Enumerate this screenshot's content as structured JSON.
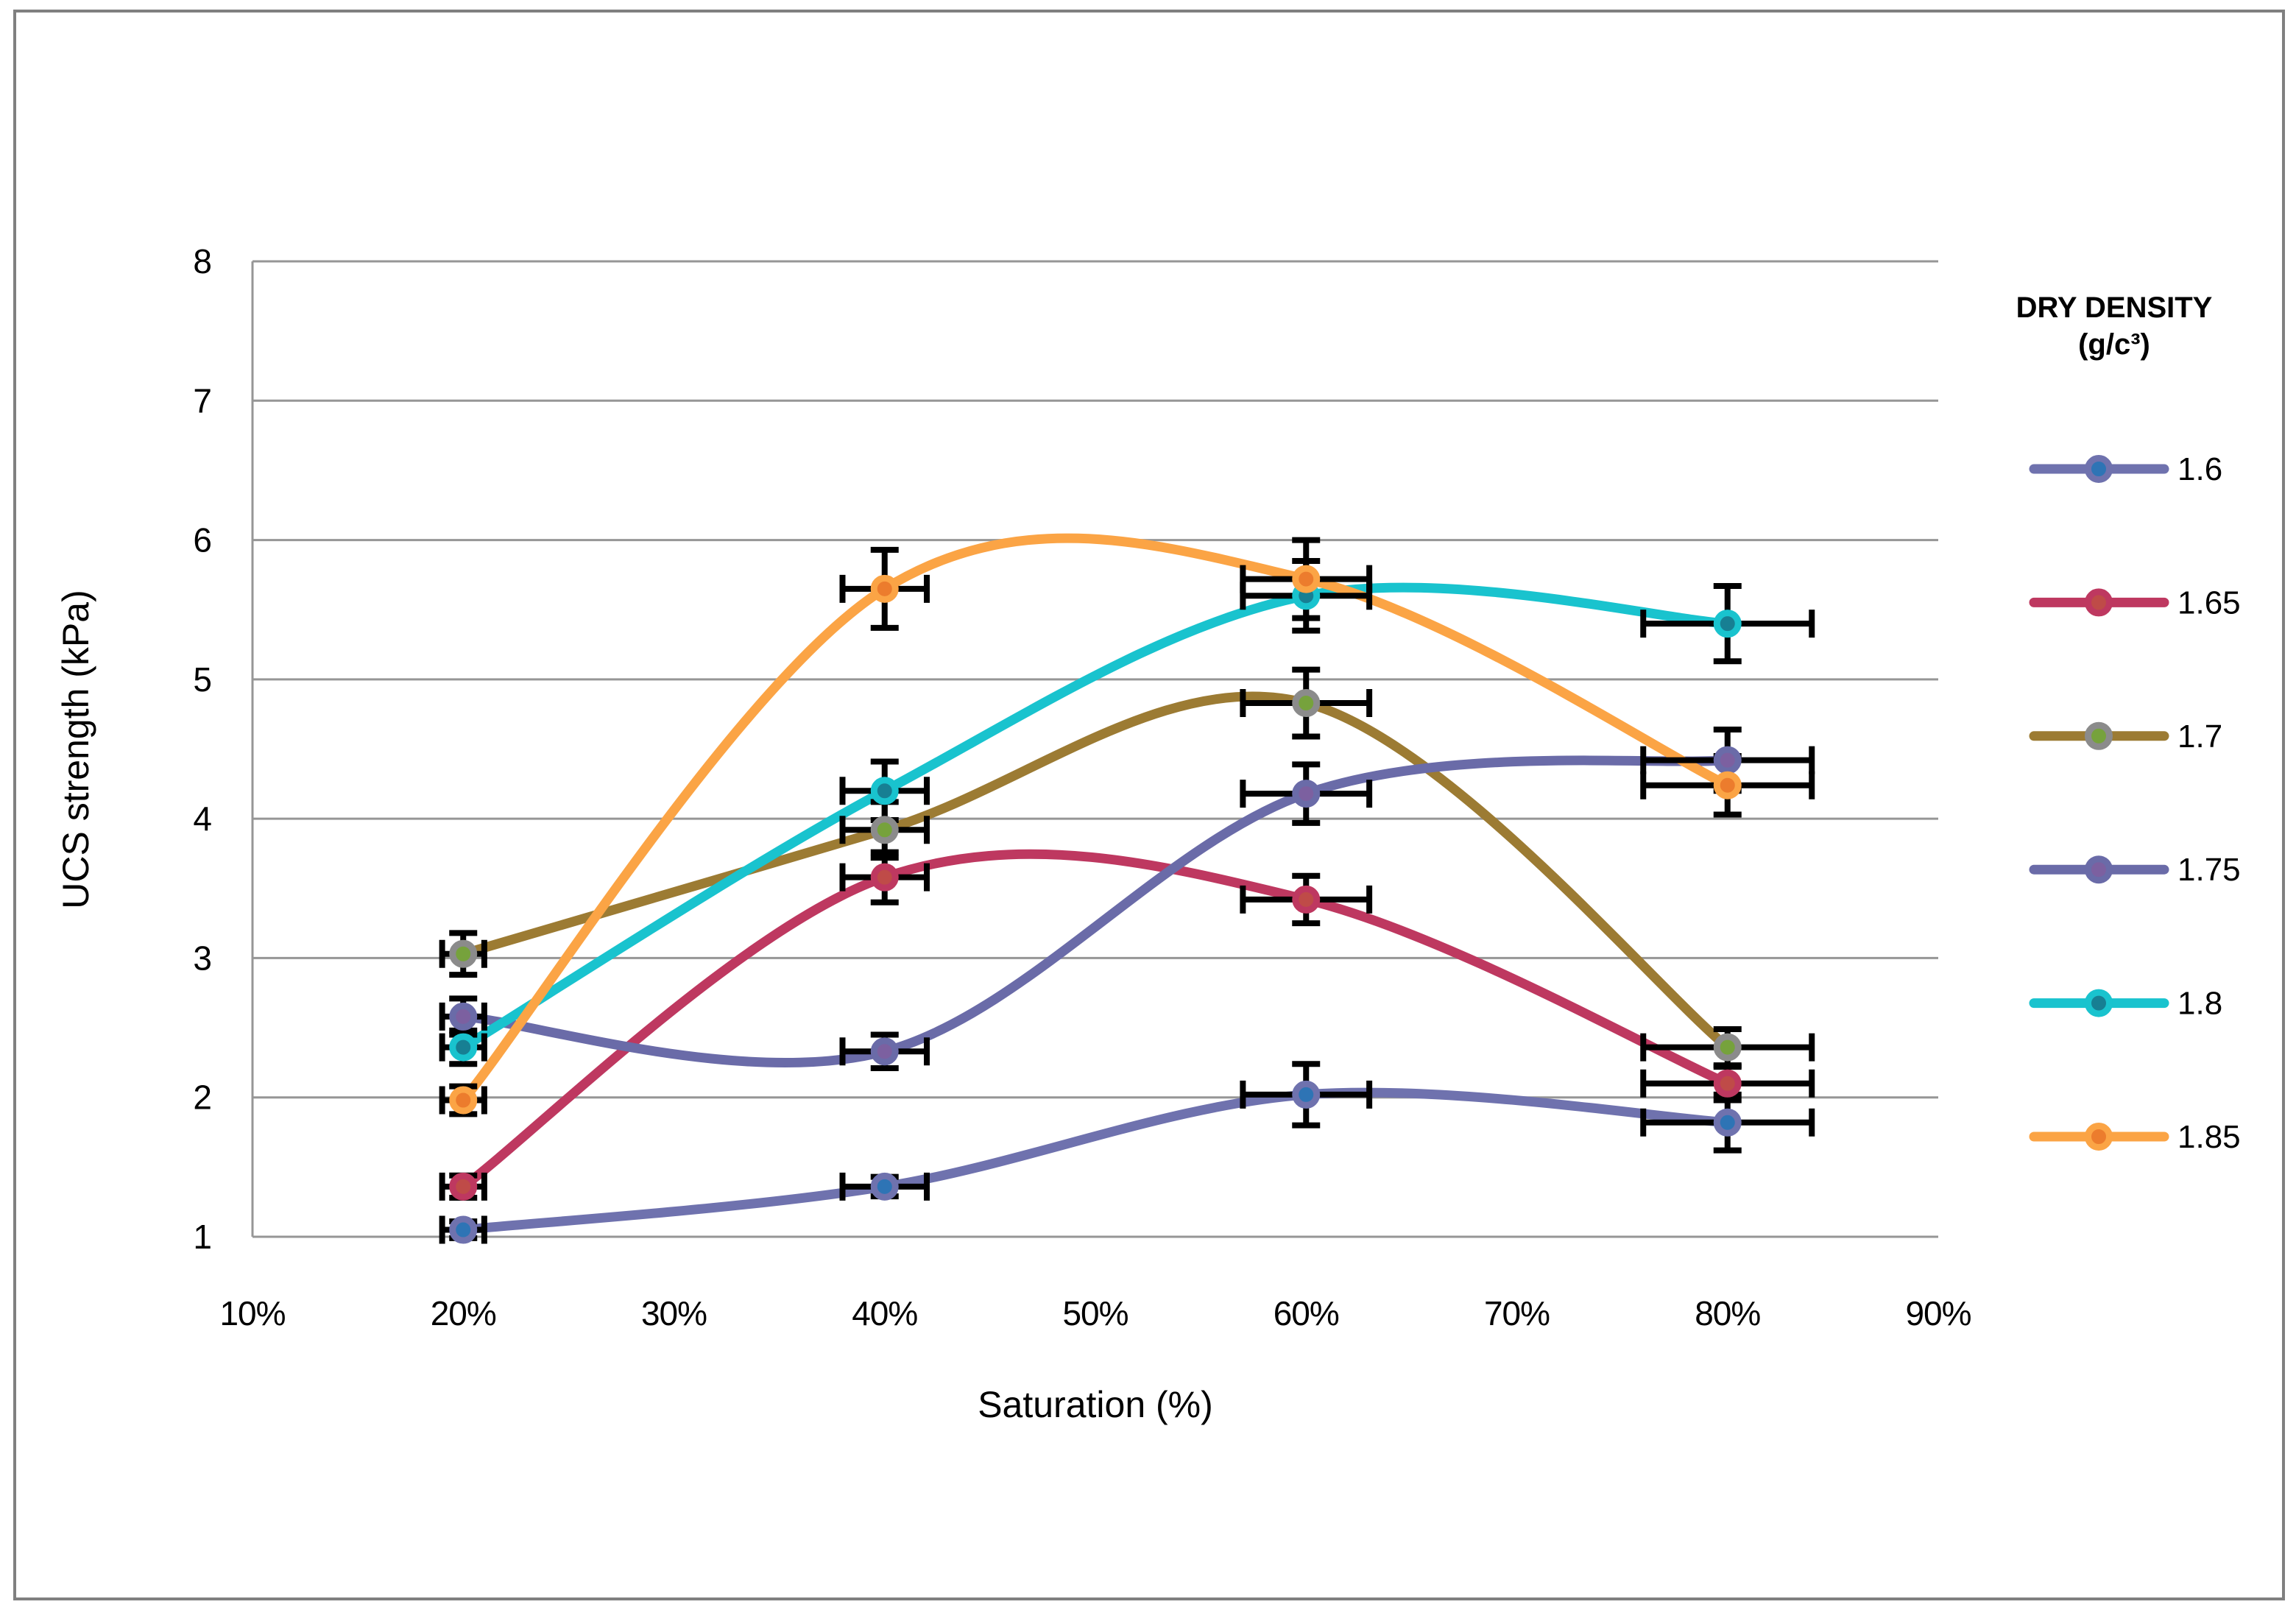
{
  "chart_data": {
    "type": "line",
    "title": "",
    "xlabel": "Saturation (%)",
    "ylabel": "UCS strength (kPa)",
    "xlim": [
      10,
      90
    ],
    "ylim": [
      1,
      8
    ],
    "x_tick_values": [
      10,
      20,
      30,
      40,
      50,
      60,
      70,
      80,
      90
    ],
    "x_tick_labels": [
      "10%",
      "20%",
      "30%",
      "40%",
      "50%",
      "60%",
      "70%",
      "80%",
      "90%"
    ],
    "y_tick_values": [
      1,
      2,
      3,
      4,
      5,
      6,
      7,
      8
    ],
    "y_tick_labels": [
      "1",
      "2",
      "3",
      "4",
      "5",
      "6",
      "7",
      "8"
    ],
    "grid": "horizontal-only",
    "smoothing": "spline",
    "x": [
      20,
      40,
      60,
      80
    ],
    "series": [
      {
        "name": "1.6",
        "line_color": "#6F72AE",
        "marker_color": "#2E74B5",
        "ring_color": "#6F72AE",
        "values": [
          1.05,
          1.36,
          2.02,
          1.82
        ],
        "y_err": [
          0.06,
          0.07,
          0.22,
          0.2
        ],
        "x_err": [
          1,
          2,
          3,
          4
        ]
      },
      {
        "name": "1.65",
        "line_color": "#BE3860",
        "marker_color": "#BF4B48",
        "ring_color": "#BE3860",
        "values": [
          1.36,
          3.58,
          3.42,
          2.1
        ],
        "y_err": [
          0.08,
          0.18,
          0.17,
          0.12
        ],
        "x_err": [
          1,
          2,
          3,
          4
        ]
      },
      {
        "name": "1.7",
        "line_color": "#9C7B33",
        "marker_color": "#76A23C",
        "ring_color": "#8B8B8B",
        "values": [
          3.03,
          3.92,
          4.83,
          2.36
        ],
        "y_err": [
          0.15,
          0.2,
          0.24,
          0.13
        ],
        "x_err": [
          1,
          2,
          3,
          4
        ]
      },
      {
        "name": "1.75",
        "line_color": "#6A6BA8",
        "marker_color": "#7C60A0",
        "ring_color": "#6A6BA8",
        "values": [
          2.58,
          2.33,
          4.18,
          4.42
        ],
        "y_err": [
          0.13,
          0.12,
          0.21,
          0.22
        ],
        "x_err": [
          1,
          2,
          3,
          4
        ]
      },
      {
        "name": "1.8",
        "line_color": "#19C3CE",
        "marker_color": "#177F93",
        "ring_color": "#19C3CE",
        "values": [
          2.36,
          4.2,
          5.6,
          5.4
        ],
        "y_err": [
          0.12,
          0.21,
          0.25,
          0.27
        ],
        "x_err": [
          1,
          2,
          3,
          4
        ]
      },
      {
        "name": "1.85",
        "line_color": "#FBA445",
        "marker_color": "#EC7C2D",
        "ring_color": "#FBA445",
        "values": [
          1.98,
          5.65,
          5.72,
          4.24
        ],
        "y_err": [
          0.1,
          0.28,
          0.28,
          0.21
        ],
        "x_err": [
          1,
          2,
          3,
          4
        ]
      }
    ],
    "legend": {
      "position": "right",
      "title_line1": "DRY DENSITY",
      "title_line2": "(g/c³)",
      "entries": [
        "1.6",
        "1.65",
        "1.7",
        "1.75",
        "1.8",
        "1.85"
      ]
    },
    "colors": {
      "grid": "#969696",
      "axis": "#969696",
      "error_bar": "#000000",
      "frame_border": "#808080",
      "background": "#FFFFFF"
    }
  }
}
